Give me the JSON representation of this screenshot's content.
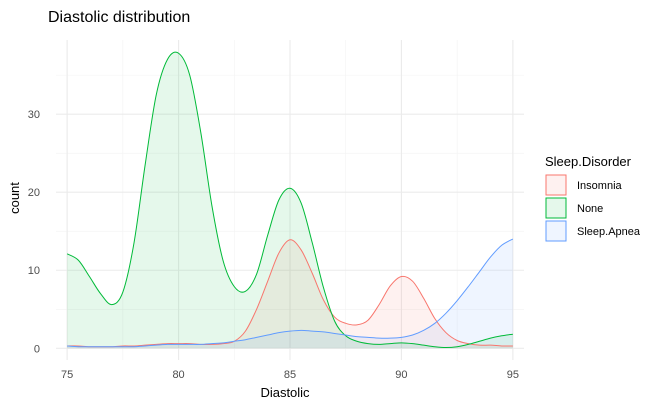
{
  "chart_data": {
    "type": "area",
    "title": "Diastolic distribution",
    "xlabel": "Diastolic",
    "ylabel": "count",
    "xlim": [
      74.5,
      95.5
    ],
    "ylim": [
      -1.5,
      39.5
    ],
    "x_ticks": [
      75,
      80,
      85,
      90,
      95
    ],
    "y_ticks": [
      0,
      10,
      20,
      30
    ],
    "grid": true,
    "legend": {
      "title": "Sleep.Disorder",
      "position": "right",
      "entries": [
        "Insomnia",
        "None",
        "Sleep.Apnea"
      ]
    },
    "x": [
      75,
      75.5,
      76,
      76.5,
      77,
      77.5,
      78,
      78.5,
      79,
      79.5,
      80,
      80.5,
      81,
      81.5,
      82,
      82.5,
      83,
      83.5,
      84,
      84.5,
      85,
      85.5,
      86,
      86.5,
      87,
      87.5,
      88,
      88.5,
      89,
      89.5,
      90,
      90.5,
      91,
      91.5,
      92,
      92.5,
      93,
      93.5,
      94,
      94.5,
      95
    ],
    "series": [
      {
        "name": "Insomnia",
        "color": "#F8766D",
        "fill": "#F8766D",
        "values": [
          0.3,
          0.3,
          0.2,
          0.2,
          0.2,
          0.3,
          0.3,
          0.4,
          0.5,
          0.6,
          0.6,
          0.6,
          0.5,
          0.5,
          0.6,
          0.9,
          2.2,
          5.0,
          8.6,
          12.2,
          13.9,
          12.6,
          9.6,
          6.2,
          4.0,
          3.2,
          3.0,
          3.6,
          5.6,
          8.0,
          9.2,
          8.6,
          6.4,
          3.8,
          2.0,
          1.0,
          0.6,
          0.4,
          0.4,
          0.3,
          0.3
        ]
      },
      {
        "name": "None",
        "color": "#00BA38",
        "fill": "#00BA38",
        "values": [
          12.1,
          11.3,
          9.2,
          7.0,
          5.6,
          7.2,
          13.5,
          23.5,
          32.5,
          37.0,
          37.8,
          35.0,
          27.6,
          18.2,
          11.2,
          7.9,
          7.3,
          9.5,
          14.5,
          19.0,
          20.5,
          18.6,
          13.5,
          7.8,
          3.5,
          1.6,
          0.9,
          0.6,
          0.5,
          0.6,
          0.7,
          0.6,
          0.4,
          0.2,
          0.1,
          0.2,
          0.5,
          0.9,
          1.3,
          1.6,
          1.8
        ]
      },
      {
        "name": "Sleep.Apnea",
        "color": "#619CFF",
        "fill": "#619CFF",
        "values": [
          0.3,
          0.2,
          0.2,
          0.2,
          0.2,
          0.2,
          0.2,
          0.3,
          0.4,
          0.5,
          0.5,
          0.5,
          0.5,
          0.6,
          0.7,
          0.9,
          1.1,
          1.4,
          1.7,
          2.0,
          2.2,
          2.3,
          2.2,
          2.1,
          1.9,
          1.7,
          1.5,
          1.4,
          1.3,
          1.3,
          1.4,
          1.7,
          2.3,
          3.2,
          4.5,
          6.1,
          7.9,
          9.8,
          11.7,
          13.2,
          14.0
        ]
      }
    ]
  }
}
